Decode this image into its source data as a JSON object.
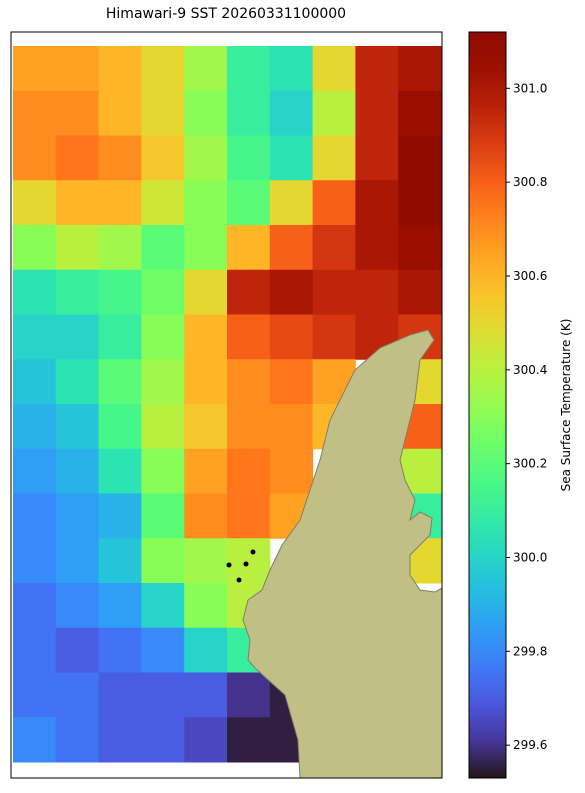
{
  "chart_data": {
    "type": "heatmap",
    "title": "Himawari-9 SST 20260331100000",
    "colorbar_label": "Sea Surface Temperature (K)",
    "zlim": [
      299.53,
      301.12
    ],
    "zticks": [
      299.6,
      299.8,
      {
        "value": 300,
        "label": "300.0"
      },
      300.2,
      300.4,
      300.6,
      300.8,
      {
        "value": 301,
        "label": "301.0"
      }
    ],
    "z": [
      [
        300.65,
        300.65,
        300.6,
        300.5,
        300.35,
        300.1,
        300.05,
        300.5,
        300.95,
        301.0
      ],
      [
        300.7,
        300.7,
        300.6,
        300.5,
        300.3,
        300.1,
        300.0,
        300.4,
        300.95,
        301.05
      ],
      [
        300.7,
        300.75,
        300.7,
        300.55,
        300.35,
        300.15,
        300.05,
        300.5,
        300.95,
        301.1
      ],
      [
        300.5,
        300.6,
        300.6,
        300.45,
        300.3,
        300.2,
        300.5,
        300.8,
        301.0,
        301.1
      ],
      [
        300.3,
        300.4,
        300.35,
        300.2,
        300.3,
        300.6,
        300.8,
        300.9,
        301.0,
        301.05
      ],
      [
        300.05,
        300.1,
        300.15,
        300.25,
        300.5,
        300.95,
        301.0,
        300.95,
        300.95,
        301.0
      ],
      [
        300.0,
        300.0,
        300.1,
        300.3,
        300.6,
        300.8,
        300.85,
        300.9,
        300.95,
        300.9
      ],
      [
        299.95,
        300.05,
        300.2,
        300.35,
        300.6,
        300.7,
        300.75,
        300.65,
        null,
        300.5
      ],
      [
        299.9,
        299.95,
        300.15,
        300.4,
        300.55,
        300.7,
        300.7,
        300.6,
        null,
        300.8
      ],
      [
        299.85,
        299.9,
        300.05,
        300.3,
        300.65,
        300.75,
        300.7,
        null,
        null,
        300.4
      ],
      [
        299.8,
        299.85,
        299.9,
        300.2,
        300.7,
        300.75,
        300.65,
        null,
        null,
        300.1
      ],
      [
        299.8,
        299.85,
        299.95,
        300.3,
        300.35,
        300.4,
        null,
        null,
        null,
        300.5
      ],
      [
        299.75,
        299.8,
        299.85,
        300.0,
        300.3,
        300.4,
        null,
        null,
        null,
        null
      ],
      [
        299.75,
        299.7,
        299.75,
        299.8,
        300.0,
        300.1,
        null,
        null,
        null,
        null
      ],
      [
        299.75,
        299.75,
        299.7,
        299.7,
        299.7,
        299.6,
        299.55,
        null,
        null,
        null
      ],
      [
        299.8,
        299.75,
        299.7,
        299.7,
        299.65,
        299.55,
        299.55,
        null,
        null,
        null
      ]
    ]
  }
}
